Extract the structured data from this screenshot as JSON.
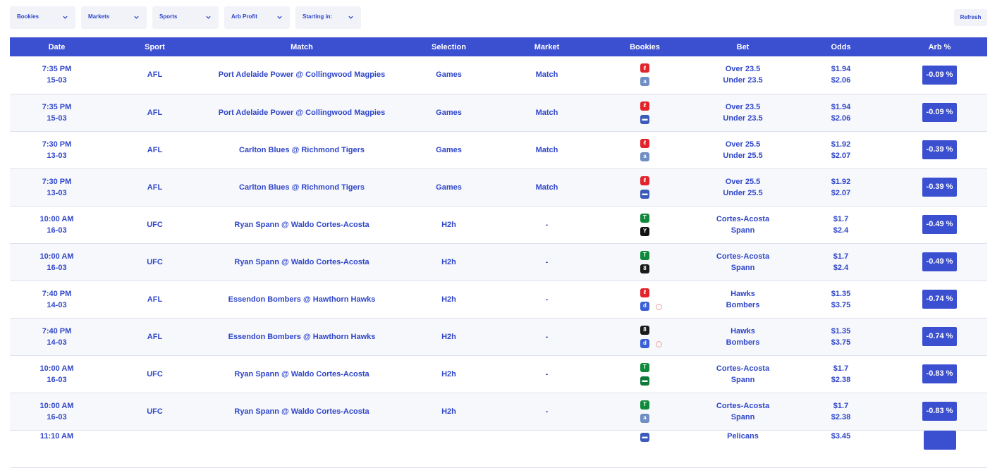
{
  "filters": {
    "bookies": "Bookies",
    "markets": "Markets",
    "sports": "Sports",
    "arb_profit": "Arb Profit",
    "starting_in": "Starting in:",
    "refresh": "Refresh"
  },
  "headers": [
    "Date",
    "Sport",
    "Match",
    "Selection",
    "Market",
    "Bookies",
    "Bet",
    "Odds",
    "Arb %"
  ],
  "colors": {
    "accent": "#3b4fd1",
    "text": "#2f46c9"
  },
  "rows": [
    {
      "time": "7:35 PM",
      "date": "15-03",
      "sport": "AFL",
      "match": "Port Adelaide Power @ Collingwood Magpies",
      "selection": "Games",
      "market": "Match",
      "bookies": [
        "ladbrokes-icon",
        "pointsbet-icon"
      ],
      "bet1": "Over 23.5",
      "bet2": "Under 23.5",
      "odds1": "$1.94",
      "odds2": "$2.06",
      "arb": "-0.09 %"
    },
    {
      "time": "7:35 PM",
      "date": "15-03",
      "sport": "AFL",
      "match": "Port Adelaide Power @ Collingwood Magpies",
      "selection": "Games",
      "market": "Match",
      "bookies": [
        "ladbrokes-icon",
        "betdeluxe-icon"
      ],
      "bet1": "Over 23.5",
      "bet2": "Under 23.5",
      "odds1": "$1.94",
      "odds2": "$2.06",
      "arb": "-0.09 %"
    },
    {
      "time": "7:30 PM",
      "date": "13-03",
      "sport": "AFL",
      "match": "Carlton Blues @ Richmond Tigers",
      "selection": "Games",
      "market": "Match",
      "bookies": [
        "ladbrokes-icon",
        "pointsbet-icon"
      ],
      "bet1": "Over 25.5",
      "bet2": "Under 25.5",
      "odds1": "$1.92",
      "odds2": "$2.07",
      "arb": "-0.39 %"
    },
    {
      "time": "7:30 PM",
      "date": "13-03",
      "sport": "AFL",
      "match": "Carlton Blues @ Richmond Tigers",
      "selection": "Games",
      "market": "Match",
      "bookies": [
        "ladbrokes-icon",
        "betdeluxe-icon"
      ],
      "bet1": "Over 25.5",
      "bet2": "Under 25.5",
      "odds1": "$1.92",
      "odds2": "$2.07",
      "arb": "-0.39 %"
    },
    {
      "time": "10:00 AM",
      "date": "16-03",
      "sport": "UFC",
      "match": "Ryan Spann @ Waldo Cortes-Acosta",
      "selection": "H2h",
      "market": "-",
      "bookies": [
        "tab-icon",
        "betr-icon"
      ],
      "bet1": "Cortes-Acosta",
      "bet2": "Spann",
      "odds1": "$1.7",
      "odds2": "$2.4",
      "arb": "-0.49 %"
    },
    {
      "time": "10:00 AM",
      "date": "16-03",
      "sport": "UFC",
      "match": "Ryan Spann @ Waldo Cortes-Acosta",
      "selection": "H2h",
      "market": "-",
      "bookies": [
        "tab-icon",
        "bet365-icon"
      ],
      "bet1": "Cortes-Acosta",
      "bet2": "Spann",
      "odds1": "$1.7",
      "odds2": "$2.4",
      "arb": "-0.49 %"
    },
    {
      "time": "7:40 PM",
      "date": "14-03",
      "sport": "AFL",
      "match": "Essendon Bombers @ Hawthorn Hawks",
      "selection": "H2h",
      "market": "-",
      "bookies": [
        "ladbrokes-icon",
        "dabble-icon"
      ],
      "bet1": "Hawks",
      "bet2": "Bombers",
      "odds1": "$1.35",
      "odds2": "$3.75",
      "arb": "-0.74 %",
      "dot": true
    },
    {
      "time": "7:40 PM",
      "date": "14-03",
      "sport": "AFL",
      "match": "Essendon Bombers @ Hawthorn Hawks",
      "selection": "H2h",
      "market": "-",
      "bookies": [
        "bet365-icon",
        "dabble-icon"
      ],
      "bet1": "Hawks",
      "bet2": "Bombers",
      "odds1": "$1.35",
      "odds2": "$3.75",
      "arb": "-0.74 %",
      "dot": true
    },
    {
      "time": "10:00 AM",
      "date": "16-03",
      "sport": "UFC",
      "match": "Ryan Spann @ Waldo Cortes-Acosta",
      "selection": "H2h",
      "market": "-",
      "bookies": [
        "tab-icon",
        "sportsbet-icon"
      ],
      "bet1": "Cortes-Acosta",
      "bet2": "Spann",
      "odds1": "$1.7",
      "odds2": "$2.38",
      "arb": "-0.83 %"
    },
    {
      "time": "10:00 AM",
      "date": "16-03",
      "sport": "UFC",
      "match": "Ryan Spann @ Waldo Cortes-Acosta",
      "selection": "H2h",
      "market": "-",
      "bookies": [
        "tab-icon",
        "pointsbet-icon"
      ],
      "bet1": "Cortes-Acosta",
      "bet2": "Spann",
      "odds1": "$1.7",
      "odds2": "$2.38",
      "arb": "-0.83 %"
    },
    {
      "time": "11:10 AM",
      "date": "",
      "sport": "",
      "match": "",
      "selection": "",
      "market": "",
      "bookies": [
        "betdeluxe-icon"
      ],
      "bet1": "Pelicans",
      "bet2": "",
      "odds1": "$3.45",
      "odds2": "",
      "arb": ""
    }
  ]
}
